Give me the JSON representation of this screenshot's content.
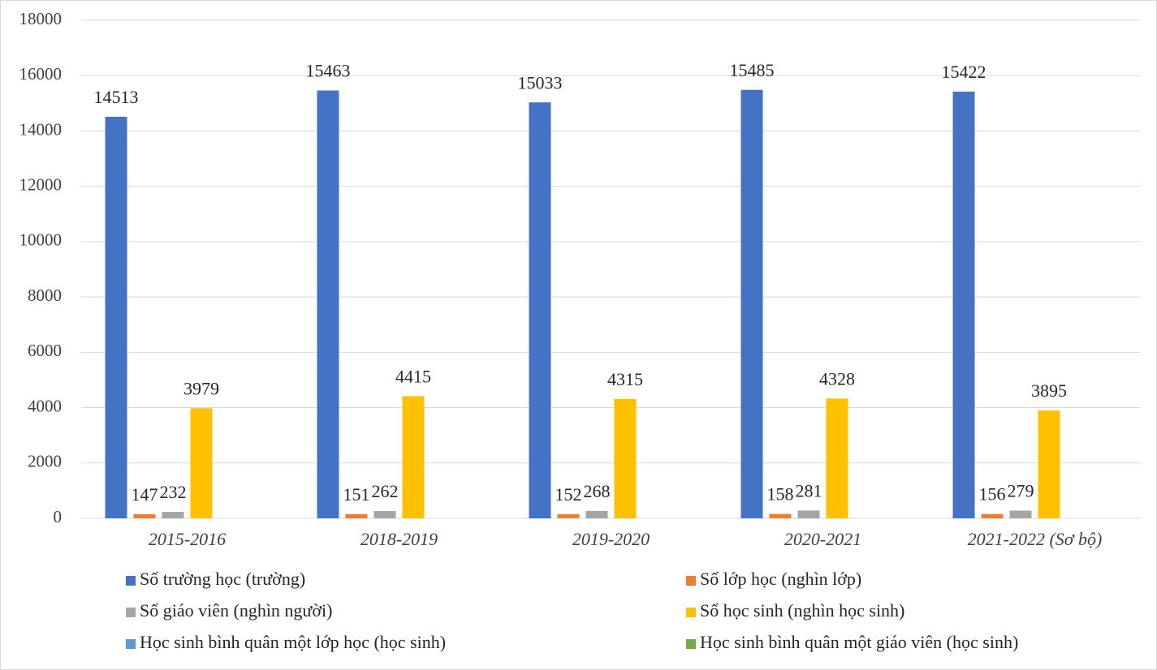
{
  "chart_data": {
    "type": "bar",
    "categories": [
      "2015-2016",
      "2018-2019",
      "2019-2020",
      "2020-2021",
      "2021-2022 (Sơ bộ)"
    ],
    "series": [
      {
        "name": "Số trường học (trường)",
        "color": "#4472c4",
        "values": [
          14513,
          15463,
          15033,
          15485,
          15422
        ]
      },
      {
        "name": "Số lớp học (nghìn lớp)",
        "color": "#ed7d31",
        "values": [
          147,
          151,
          152,
          158,
          156
        ]
      },
      {
        "name": "Số giáo viên (nghìn người)",
        "color": "#a5a5a5",
        "values": [
          232,
          262,
          268,
          281,
          279
        ]
      },
      {
        "name": "Số học sinh (nghìn học sinh)",
        "color": "#ffc000",
        "values": [
          3979,
          4415,
          4315,
          4328,
          3895
        ]
      },
      {
        "name": "Học sinh bình quân một lớp học (học sinh)",
        "color": "#5b9bd5",
        "values": [
          null,
          null,
          null,
          null,
          null
        ]
      },
      {
        "name": "Học sinh bình quân một giáo viên (học sinh)",
        "color": "#70ad47",
        "values": [
          null,
          null,
          null,
          null,
          null
        ]
      }
    ],
    "ylim": [
      0,
      18000
    ],
    "yticks": [
      0,
      2000,
      4000,
      6000,
      8000,
      10000,
      12000,
      14000,
      16000,
      18000
    ],
    "grid": true,
    "legend": "bottom"
  }
}
